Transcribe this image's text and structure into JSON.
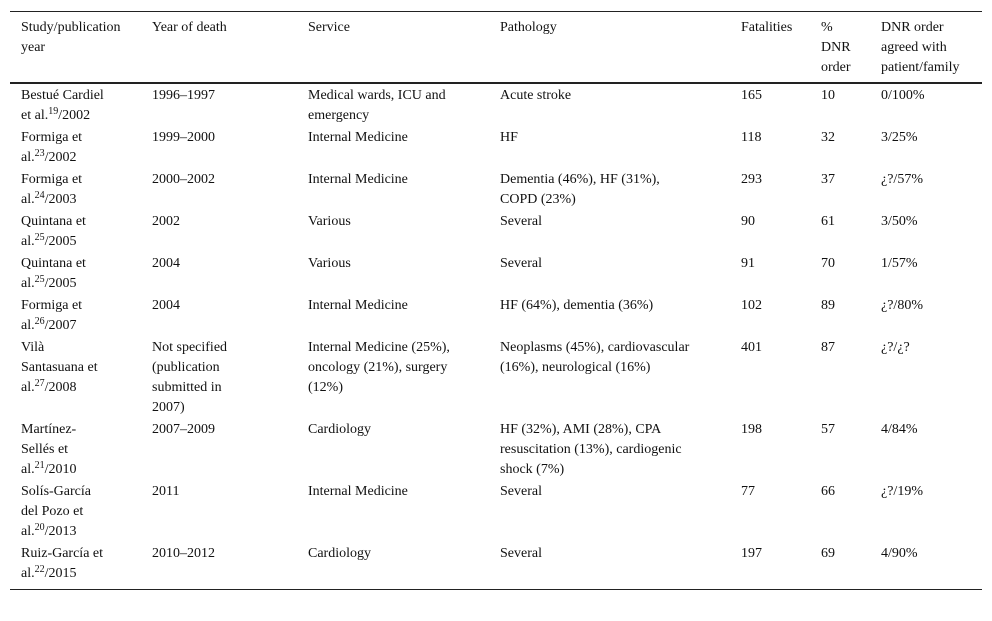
{
  "table": {
    "header": [
      "Study/publication year",
      "Year of death",
      "Service",
      "Pathology",
      "Fatalities",
      "% DNR order",
      "DNR order agreed with patient/family"
    ],
    "rows": [
      {
        "study": {
          "author": "Bestué Cardiel et al.",
          "ref": "19",
          "year": "/2002"
        },
        "year_of_death": "1996–1997",
        "service": "Medical wards, ICU and emergency",
        "pathology": "Acute stroke",
        "fatalities": 165,
        "dnr_percent": 10,
        "dnr_agreed": "0/100%"
      },
      {
        "study": {
          "author": "Formiga et al.",
          "ref": "23",
          "year": "/2002"
        },
        "year_of_death": "1999–2000",
        "service": "Internal Medicine",
        "pathology": "HF",
        "fatalities": 118,
        "dnr_percent": 32,
        "dnr_agreed": "3/25%"
      },
      {
        "study": {
          "author": "Formiga et al.",
          "ref": "24",
          "year": "/2003"
        },
        "year_of_death": "2000–2002",
        "service": "Internal Medicine",
        "pathology": "Dementia (46%), HF (31%), COPD (23%)",
        "fatalities": 293,
        "dnr_percent": 37,
        "dnr_agreed": "¿?/57%"
      },
      {
        "study": {
          "author": "Quintana et al.",
          "ref": "25",
          "year": "/2005"
        },
        "year_of_death": "2002",
        "service": "Various",
        "pathology": "Several",
        "fatalities": 90,
        "dnr_percent": 61,
        "dnr_agreed": "3/50%"
      },
      {
        "study": {
          "author": "Quintana et al.",
          "ref": "25",
          "year": "/2005"
        },
        "year_of_death": "2004",
        "service": "Various",
        "pathology": "Several",
        "fatalities": 91,
        "dnr_percent": 70,
        "dnr_agreed": "1/57%"
      },
      {
        "study": {
          "author": "Formiga et al.",
          "ref": "26",
          "year": "/2007"
        },
        "year_of_death": "2004",
        "service": "Internal Medicine",
        "pathology": "HF (64%), dementia (36%)",
        "fatalities": 102,
        "dnr_percent": 89,
        "dnr_agreed": "¿?/80%"
      },
      {
        "study": {
          "author": "Vilà Santasuana et al.",
          "ref": "27",
          "year": "/2008"
        },
        "year_of_death": "Not specified (publication submitted in 2007)",
        "service": "Internal Medicine (25%), oncology (21%), surgery (12%)",
        "pathology": "Neoplasms (45%), cardiovascular (16%), neurological (16%)",
        "fatalities": 401,
        "dnr_percent": 87,
        "dnr_agreed": "¿?/¿?"
      },
      {
        "study": {
          "author": "Martínez-Sellés et al.",
          "ref": "21",
          "year": "/2010"
        },
        "year_of_death": "2007–2009",
        "service": "Cardiology",
        "pathology": "HF (32%), AMI (28%), CPA resuscitation (13%), cardiogenic shock (7%)",
        "fatalities": 198,
        "dnr_percent": 57,
        "dnr_agreed": "4/84%"
      },
      {
        "study": {
          "author": "Solís-García del Pozo et al.",
          "ref": "20",
          "year": "/2013"
        },
        "year_of_death": "2011",
        "service": "Internal Medicine",
        "pathology": "Several",
        "fatalities": 77,
        "dnr_percent": 66,
        "dnr_agreed": "¿?/19%"
      },
      {
        "study": {
          "author": "Ruiz-García et al.",
          "ref": "22",
          "year": "/2015"
        },
        "year_of_death": "2010–2012",
        "service": "Cardiology",
        "pathology": "Several",
        "fatalities": 197,
        "dnr_percent": 69,
        "dnr_agreed": "4/90%"
      }
    ]
  }
}
